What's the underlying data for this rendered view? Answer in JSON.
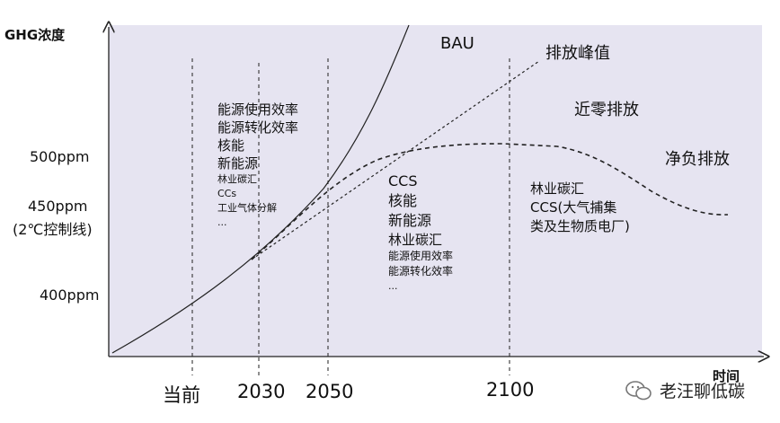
{
  "axes": {
    "y_label": "GHG浓度",
    "x_label": "时间",
    "y_ticks": [
      "500ppm",
      "450ppm",
      "(2℃控制线)",
      "400ppm"
    ],
    "x_ticks": [
      "当前",
      "2030",
      "2050",
      "2100"
    ]
  },
  "curves": {
    "bau": "BAU",
    "peak": "排放峰值",
    "near_zero": "近零排放",
    "net_negative": "净负排放"
  },
  "measures_left": {
    "large": [
      "能源使用效率",
      "能源转化效率",
      "核能",
      "新能源"
    ],
    "small": [
      "林业碳汇",
      "CCs",
      "工业气体分解",
      "..."
    ]
  },
  "measures_mid": {
    "large": [
      "CCS",
      "核能",
      "新能源",
      "林业碳汇"
    ],
    "small": [
      "能源使用效率",
      "能源转化效率",
      "..."
    ]
  },
  "measures_right": [
    "林业碳汇",
    "CCS(大气捕集",
    "类及生物质电厂)"
  ],
  "watermark": "老汪聊低碳",
  "colors": {
    "plot_bg": "#e6e4f1",
    "line": "#222222"
  }
}
